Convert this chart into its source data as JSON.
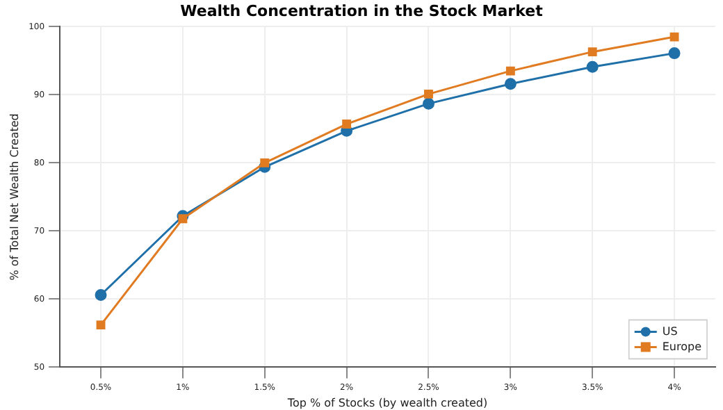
{
  "chart_data": {
    "type": "line",
    "title": "Wealth Concentration in the Stock Market",
    "xlabel": "Top % of Stocks (by wealth created)",
    "ylabel": "% of Total Net Wealth Created",
    "categories": [
      "0.5%",
      "1%",
      "1.5%",
      "2%",
      "2.5%",
      "3%",
      "3.5%",
      "4%"
    ],
    "series": [
      {
        "name": "US",
        "color": "#1f6fa8",
        "marker": "circle",
        "values": [
          60.6,
          72.2,
          79.4,
          84.7,
          88.7,
          91.6,
          94.1,
          96.1
        ]
      },
      {
        "name": "Europe",
        "color": "#e07b22",
        "marker": "square",
        "values": [
          56.2,
          71.8,
          80.0,
          85.7,
          90.1,
          93.5,
          96.3,
          98.5
        ]
      }
    ],
    "ylim": [
      50,
      100
    ],
    "yticks": [
      50,
      60,
      70,
      80,
      90,
      100
    ],
    "grid": true,
    "legend": "bottom right",
    "line_style": "solid"
  }
}
